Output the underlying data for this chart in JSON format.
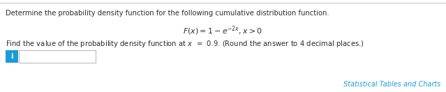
{
  "line1": "Determine the probability density function for the following cumulative distribution function.",
  "formula": "$F(x) = 1 - e^{-2x}, x > 0$",
  "line3": "Find the value of the probability density function at $x$  =  0.9. (Round the answer to 4 decimal places.)",
  "link_text": "Statistical Tables and Charts",
  "background_color": "#ffffff",
  "text_color": "#2d2d2d",
  "link_color": "#1a9cd8",
  "info_btn_color": "#1a9cd8",
  "info_btn_text": "i",
  "border_color": "#bbbbbb",
  "top_border_color": "#c8c8c8",
  "line1_fontsize": 7.2,
  "formula_fontsize": 8.0,
  "line3_fontsize": 7.2,
  "link_fontsize": 7.0
}
